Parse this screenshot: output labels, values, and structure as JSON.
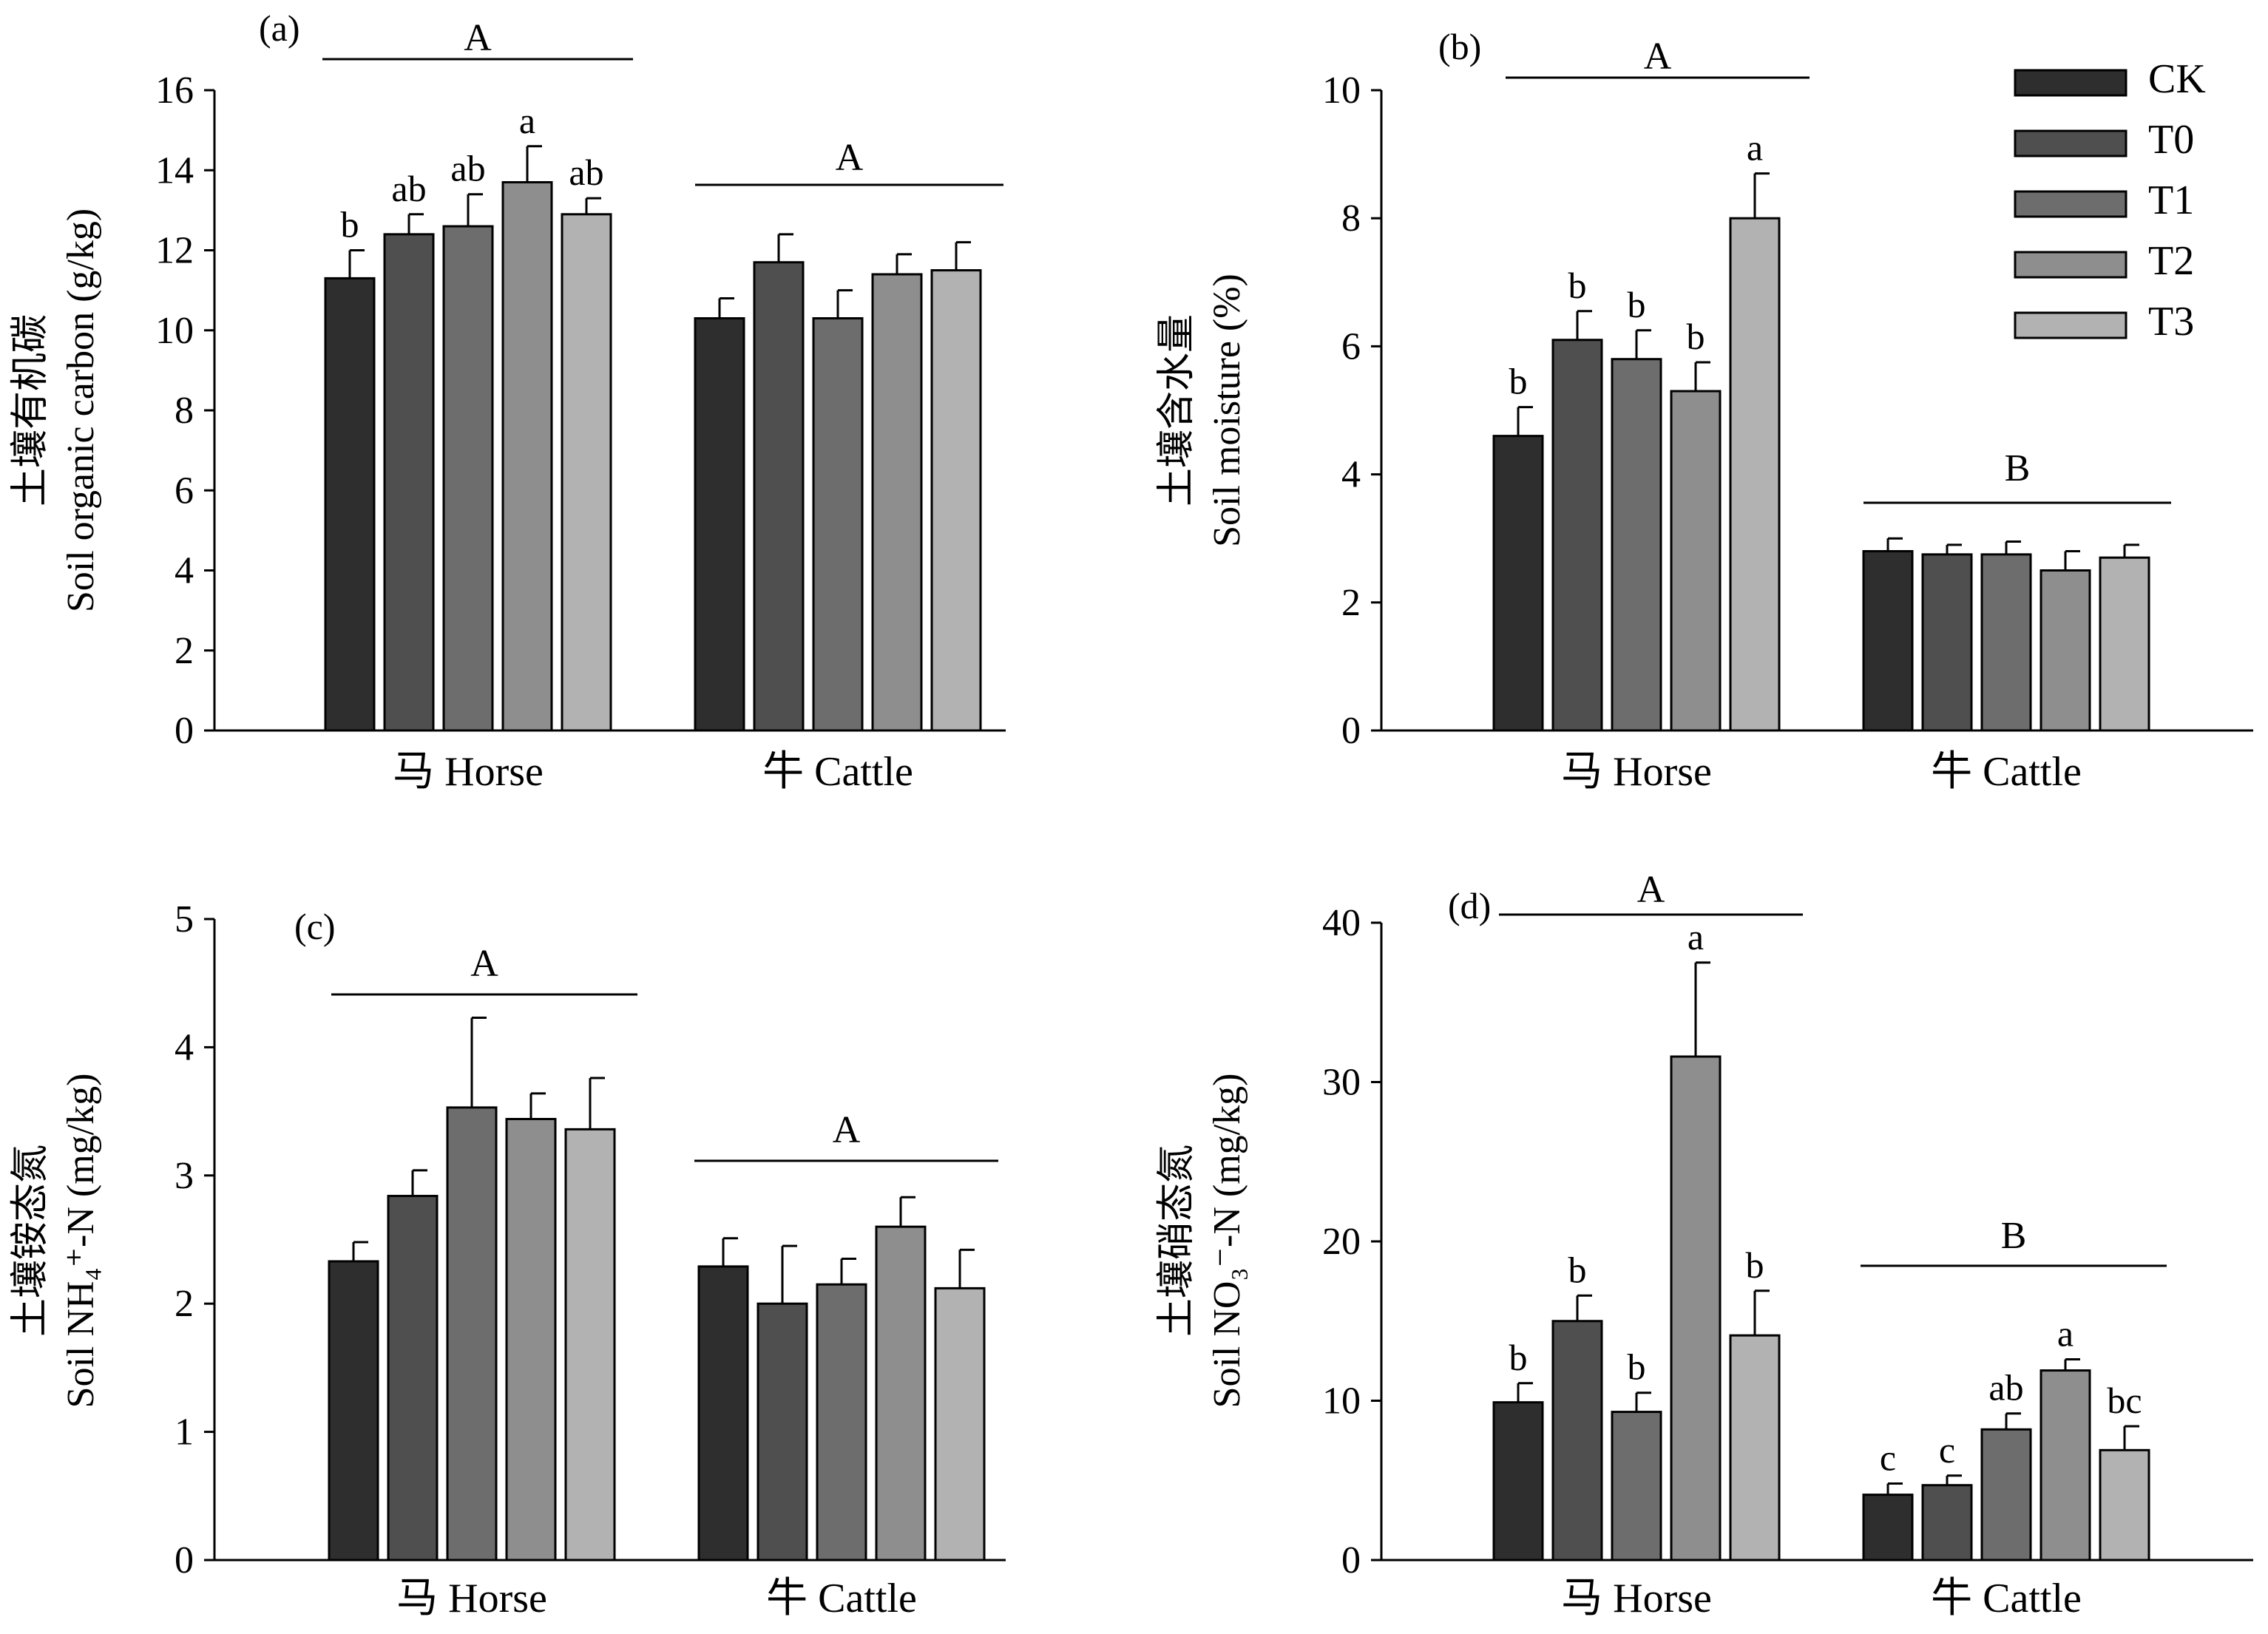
{
  "chart_data": [
    {
      "type": "bar",
      "panel_label": "(a)",
      "ylabel_cn": "土壤有机碳",
      "ylabel_en": "Soil organic carbon (g/kg)",
      "groups": [
        "马 Horse",
        "牛 Cattle"
      ],
      "treatments": [
        "CK",
        "T0",
        "T1",
        "T2",
        "T3"
      ],
      "ylim": [
        0,
        16
      ],
      "yticks": [
        0,
        2,
        4,
        6,
        8,
        10,
        12,
        14,
        16
      ],
      "values": [
        [
          11.3,
          12.4,
          12.6,
          13.7,
          12.9
        ],
        [
          10.3,
          11.7,
          10.3,
          11.4,
          11.5
        ]
      ],
      "errors": [
        [
          0.7,
          0.5,
          0.8,
          0.9,
          0.4
        ],
        [
          0.5,
          0.7,
          0.7,
          0.5,
          0.7
        ]
      ],
      "letters": [
        [
          "b",
          "ab",
          "ab",
          "a",
          "ab"
        ],
        [
          "",
          "",
          "",
          "",
          ""
        ]
      ],
      "group_letters": [
        "A",
        "A"
      ]
    },
    {
      "type": "bar",
      "panel_label": "(b)",
      "ylabel_cn": "土壤含水量",
      "ylabel_en": "Soil moisture (%)",
      "groups": [
        "马 Horse",
        "牛 Cattle"
      ],
      "treatments": [
        "CK",
        "T0",
        "T1",
        "T2",
        "T3"
      ],
      "ylim": [
        0,
        10
      ],
      "yticks": [
        0,
        2,
        4,
        6,
        8,
        10
      ],
      "values": [
        [
          4.6,
          6.1,
          5.8,
          5.3,
          8.0
        ],
        [
          2.8,
          2.75,
          2.75,
          2.5,
          2.7
        ]
      ],
      "errors": [
        [
          0.45,
          0.45,
          0.45,
          0.45,
          0.7
        ],
        [
          0.2,
          0.15,
          0.2,
          0.3,
          0.2
        ]
      ],
      "letters": [
        [
          "b",
          "b",
          "b",
          "b",
          "a"
        ],
        [
          "",
          "",
          "",
          "",
          ""
        ]
      ],
      "group_letters": [
        "A",
        "B"
      ],
      "legend": [
        "CK",
        "T0",
        "T1",
        "T2",
        "T3"
      ]
    },
    {
      "type": "bar",
      "panel_label": "(c)",
      "ylabel_cn": "土壤铵态氮",
      "ylabel_en": "Soil NH₄⁺-N (mg/kg)",
      "groups": [
        "马 Horse",
        "牛 Cattle"
      ],
      "treatments": [
        "CK",
        "T0",
        "T1",
        "T2",
        "T3"
      ],
      "ylim": [
        0,
        5
      ],
      "yticks": [
        0,
        1,
        2,
        3,
        4,
        5
      ],
      "values": [
        [
          2.33,
          2.84,
          3.53,
          3.44,
          3.36
        ],
        [
          2.29,
          2.0,
          2.15,
          2.6,
          2.12
        ]
      ],
      "errors": [
        [
          0.15,
          0.2,
          0.7,
          0.2,
          0.4
        ],
        [
          0.22,
          0.45,
          0.2,
          0.23,
          0.3
        ]
      ],
      "letters": [
        [
          "",
          "",
          "",
          "",
          ""
        ],
        [
          "",
          "",
          "",
          "",
          ""
        ]
      ],
      "group_letters": [
        "A",
        "A"
      ]
    },
    {
      "type": "bar",
      "panel_label": "(d)",
      "ylabel_cn": "土壤硝态氮",
      "ylabel_en": "Soil NO₃⁻-N (mg/kg)",
      "groups": [
        "马 Horse",
        "牛 Cattle"
      ],
      "treatments": [
        "CK",
        "T0",
        "T1",
        "T2",
        "T3"
      ],
      "ylim": [
        0,
        40
      ],
      "yticks": [
        0,
        10,
        20,
        30,
        40
      ],
      "values": [
        [
          9.9,
          15.0,
          9.3,
          31.6,
          14.1
        ],
        [
          4.1,
          4.7,
          8.2,
          11.9,
          6.9
        ]
      ],
      "errors": [
        [
          1.2,
          1.6,
          1.2,
          5.9,
          2.8
        ],
        [
          0.7,
          0.6,
          1.0,
          0.7,
          1.5
        ]
      ],
      "letters": [
        [
          "b",
          "b",
          "b",
          "a",
          "b"
        ],
        [
          "c",
          "c",
          "ab",
          "a",
          "bc"
        ]
      ],
      "group_letters": [
        "A",
        "B"
      ]
    }
  ],
  "colors": {
    "CK": "#2e2e2e",
    "T0": "#4f4f4f",
    "T1": "#6d6d6d",
    "T2": "#8e8e8e",
    "T3": "#b2b2b2"
  }
}
